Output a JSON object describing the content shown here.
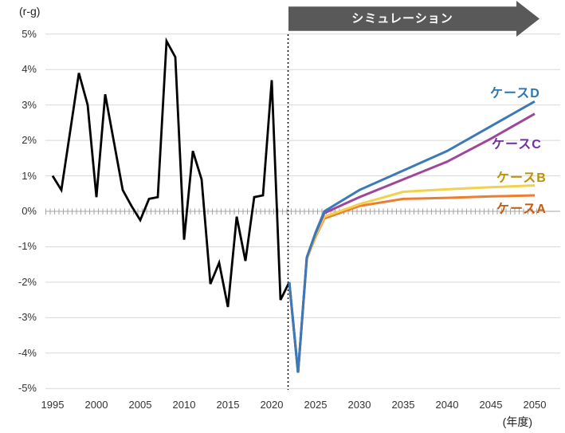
{
  "labels": {
    "banner": "シミュレーション",
    "y_axis_title": "(r-g)",
    "x_axis_title": "(年度)"
  },
  "colors": {
    "banner_bg": "#595959",
    "banner_text": "#ffffff",
    "gridline": "#d9d9d9",
    "zero_axis": "#a6a6a6",
    "divider": "#000000",
    "historical_line": "#000000"
  },
  "chart_data": {
    "type": "line",
    "title": "",
    "ylabel": "(r-g)",
    "xlabel": "(年度)",
    "ylim": [
      -5,
      5
    ],
    "xlim": [
      1995,
      2050
    ],
    "grid": true,
    "simulation_start_year": 2022,
    "y_ticks": [
      {
        "label": "5%",
        "value": 5
      },
      {
        "label": "4%",
        "value": 4
      },
      {
        "label": "3%",
        "value": 3
      },
      {
        "label": "2%",
        "value": 2
      },
      {
        "label": "1%",
        "value": 1
      },
      {
        "label": "0%",
        "value": 0
      },
      {
        "label": "-1%",
        "value": -1
      },
      {
        "label": "-2%",
        "value": -2
      },
      {
        "label": "-3%",
        "value": -3
      },
      {
        "label": "-4%",
        "value": -4
      },
      {
        "label": "-5%",
        "value": -5
      }
    ],
    "x_ticks": [
      {
        "label": "1995",
        "value": 1995
      },
      {
        "label": "2000",
        "value": 2000
      },
      {
        "label": "2005",
        "value": 2005
      },
      {
        "label": "2010",
        "value": 2010
      },
      {
        "label": "2015",
        "value": 2015
      },
      {
        "label": "2020",
        "value": 2020
      },
      {
        "label": "2025",
        "value": 2025
      },
      {
        "label": "2030",
        "value": 2030
      },
      {
        "label": "2035",
        "value": 2035
      },
      {
        "label": "2040",
        "value": 2040
      },
      {
        "label": "2045",
        "value": 2045
      },
      {
        "label": "2050",
        "value": 2050
      }
    ],
    "historical": {
      "key": "historical",
      "years": [
        1995,
        1996,
        1997,
        1998,
        1999,
        2000,
        2001,
        2002,
        2003,
        2004,
        2005,
        2006,
        2007,
        2008,
        2009,
        2010,
        2011,
        2012,
        2013,
        2014,
        2015,
        2016,
        2017,
        2018,
        2019,
        2020,
        2021,
        2022
      ],
      "values": [
        1.0,
        0.6,
        2.25,
        3.9,
        3.0,
        0.4,
        3.3,
        1.95,
        0.6,
        0.15,
        -0.25,
        0.35,
        0.4,
        4.8,
        4.35,
        -0.8,
        1.7,
        0.9,
        -2.05,
        -1.45,
        -2.7,
        -0.15,
        -1.4,
        0.4,
        0.45,
        3.7,
        -2.5,
        -2.0
      ]
    },
    "cases": [
      {
        "key": "case-d",
        "label": "ケースD",
        "line_color": "#3c79b8",
        "label_color": "#2e75b6",
        "years": [
          2022,
          2023,
          2024,
          2025,
          2026,
          2030,
          2035,
          2040,
          2045,
          2050
        ],
        "values": [
          -2.0,
          -4.55,
          -1.3,
          -0.6,
          0.0,
          0.6,
          1.15,
          1.7,
          2.4,
          3.1
        ]
      },
      {
        "key": "case-c",
        "label": "ケースC",
        "line_color": "#9e4699",
        "label_color": "#7030a0",
        "years": [
          2022,
          2023,
          2024,
          2025,
          2026,
          2030,
          2035,
          2040,
          2045,
          2050
        ],
        "values": [
          -2.0,
          -4.55,
          -1.3,
          -0.62,
          -0.05,
          0.4,
          0.9,
          1.4,
          2.05,
          2.75
        ]
      },
      {
        "key": "case-b",
        "label": "ケースB",
        "line_color": "#f0d24f",
        "label_color": "#bf9000",
        "years": [
          2022,
          2023,
          2024,
          2025,
          2026,
          2030,
          2035,
          2040,
          2045,
          2050
        ],
        "values": [
          -2.0,
          -4.55,
          -1.35,
          -0.68,
          -0.15,
          0.2,
          0.55,
          0.62,
          0.68,
          0.73
        ]
      },
      {
        "key": "case-a",
        "label": "ケースA",
        "line_color": "#ed7d31",
        "label_color": "#c55a11",
        "years": [
          2022,
          2023,
          2024,
          2025,
          2026,
          2030,
          2035,
          2040,
          2045,
          2050
        ],
        "values": [
          -2.0,
          -4.55,
          -1.35,
          -0.72,
          -0.2,
          0.15,
          0.35,
          0.38,
          0.42,
          0.45
        ]
      }
    ]
  }
}
